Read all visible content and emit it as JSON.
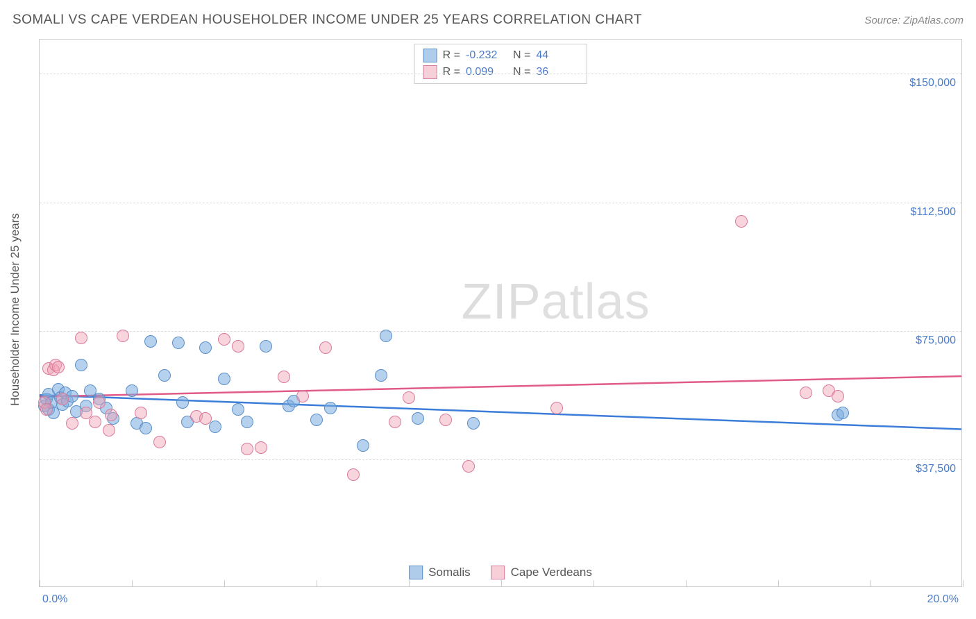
{
  "title": "SOMALI VS CAPE VERDEAN HOUSEHOLDER INCOME UNDER 25 YEARS CORRELATION CHART",
  "source": "Source: ZipAtlas.com",
  "y_axis_title": "Householder Income Under 25 years",
  "watermark": {
    "part1": "ZIP",
    "part2": "atlas"
  },
  "chart": {
    "type": "scatter",
    "background_color": "#ffffff",
    "border_color": "#cccccc",
    "grid_color": "#dddddd",
    "xlim": [
      0,
      20
    ],
    "ylim": [
      0,
      160000
    ],
    "x_ticks": [
      0,
      2,
      4,
      6,
      8,
      10,
      12,
      14,
      16,
      18,
      20
    ],
    "x_tick_labels_shown": {
      "0": "0.0%",
      "20": "20.0%"
    },
    "y_ticks": [
      37500,
      75000,
      112500,
      150000
    ],
    "y_tick_labels": [
      "$37,500",
      "$75,000",
      "$112,500",
      "$150,000"
    ],
    "label_color": "#4a7bc8",
    "label_fontsize": 16,
    "title_color": "#555555",
    "title_fontsize": 19,
    "point_radius": 9,
    "series": [
      {
        "id": "s1",
        "name": "Somalis",
        "color_fill": "rgba(122,172,222,0.55)",
        "color_stroke": "#5a8fc8",
        "r": "-0.232",
        "n": "44",
        "trend": {
          "y_at_x0": 56000,
          "y_at_x20": 46000,
          "color": "#3b7dd8",
          "width": 2.5
        },
        "points": [
          [
            0.1,
            53000
          ],
          [
            0.15,
            55000
          ],
          [
            0.2,
            52000
          ],
          [
            0.2,
            56500
          ],
          [
            0.25,
            54000
          ],
          [
            0.3,
            51000
          ],
          [
            0.4,
            58000
          ],
          [
            0.45,
            55500
          ],
          [
            0.5,
            53500
          ],
          [
            0.55,
            57000
          ],
          [
            0.6,
            54500
          ],
          [
            0.7,
            56000
          ],
          [
            0.8,
            51500
          ],
          [
            0.9,
            65000
          ],
          [
            1.0,
            53000
          ],
          [
            1.1,
            57500
          ],
          [
            1.3,
            55000
          ],
          [
            1.45,
            52500
          ],
          [
            1.6,
            49500
          ],
          [
            2.0,
            57500
          ],
          [
            2.1,
            48000
          ],
          [
            2.3,
            46500
          ],
          [
            2.4,
            72000
          ],
          [
            2.7,
            62000
          ],
          [
            3.0,
            71500
          ],
          [
            3.1,
            54000
          ],
          [
            3.2,
            48500
          ],
          [
            3.6,
            70000
          ],
          [
            3.8,
            47000
          ],
          [
            4.0,
            61000
          ],
          [
            4.3,
            52000
          ],
          [
            4.5,
            48500
          ],
          [
            4.9,
            70500
          ],
          [
            5.4,
            53000
          ],
          [
            5.5,
            54500
          ],
          [
            6.0,
            49000
          ],
          [
            6.3,
            52500
          ],
          [
            7.0,
            41500
          ],
          [
            7.4,
            62000
          ],
          [
            7.5,
            73500
          ],
          [
            8.2,
            49500
          ],
          [
            9.4,
            48000
          ],
          [
            17.3,
            50500
          ],
          [
            17.4,
            51000
          ]
        ]
      },
      {
        "id": "s2",
        "name": "Cape Verdeans",
        "color_fill": "rgba(240,160,180,0.45)",
        "color_stroke": "#d87a9a",
        "r": "0.099",
        "n": "36",
        "trend": {
          "y_at_x0": 55500,
          "y_at_x20": 61500,
          "color": "#e05a8a",
          "width": 2.5
        },
        "points": [
          [
            0.1,
            54000
          ],
          [
            0.15,
            52000
          ],
          [
            0.2,
            64000
          ],
          [
            0.3,
            63500
          ],
          [
            0.35,
            65000
          ],
          [
            0.4,
            64500
          ],
          [
            0.5,
            55000
          ],
          [
            0.7,
            48000
          ],
          [
            0.9,
            73000
          ],
          [
            1.0,
            51000
          ],
          [
            1.2,
            48500
          ],
          [
            1.3,
            54000
          ],
          [
            1.5,
            46000
          ],
          [
            1.55,
            50500
          ],
          [
            1.8,
            73500
          ],
          [
            2.2,
            51000
          ],
          [
            2.6,
            42500
          ],
          [
            3.4,
            50000
          ],
          [
            3.6,
            49500
          ],
          [
            4.0,
            72500
          ],
          [
            4.3,
            70500
          ],
          [
            4.5,
            40500
          ],
          [
            4.8,
            41000
          ],
          [
            5.3,
            61500
          ],
          [
            5.7,
            56000
          ],
          [
            6.2,
            70000
          ],
          [
            6.8,
            33000
          ],
          [
            7.7,
            48500
          ],
          [
            8.8,
            49000
          ],
          [
            9.3,
            35500
          ],
          [
            11.2,
            52500
          ],
          [
            15.2,
            107000
          ],
          [
            16.6,
            57000
          ],
          [
            17.1,
            57500
          ],
          [
            17.3,
            56000
          ],
          [
            8.0,
            55500
          ]
        ]
      }
    ]
  },
  "legend_top": {
    "r_label": "R =",
    "n_label": "N ="
  },
  "bottom_legend": {
    "s1": "Somalis",
    "s2": "Cape Verdeans"
  }
}
